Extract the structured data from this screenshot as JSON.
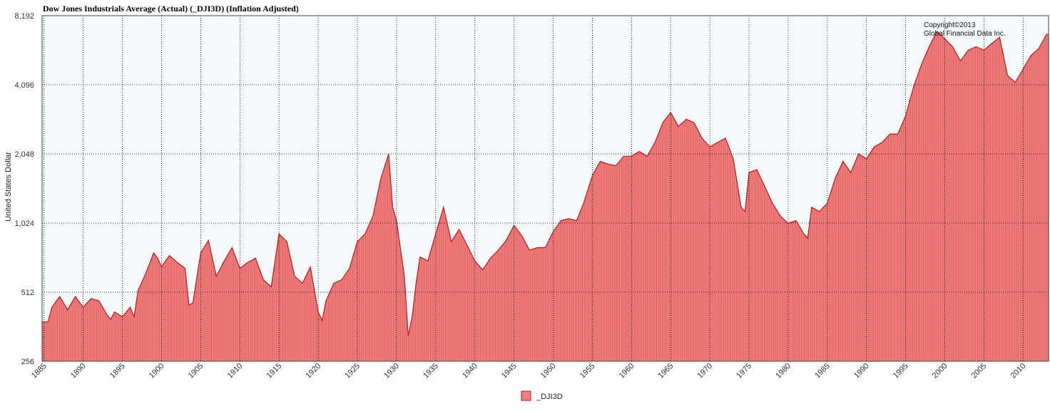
{
  "chart_data": {
    "type": "area",
    "title": "Dow Jones Industrials Average (Actual) (_DJI3D) (Inflation Adjusted)",
    "ylabel": "United States Dollar",
    "xlabel": "",
    "y_scale": "log2",
    "ylim": [
      256,
      8192
    ],
    "y_ticks": [
      256,
      512,
      1024,
      2048,
      4096,
      8192
    ],
    "y_tick_labels": [
      "256",
      "512",
      "1,024",
      "2,048",
      "4,096",
      "8,192"
    ],
    "xlim": [
      1884.75,
      2013.25
    ],
    "x_ticks": [
      1885,
      1890,
      1895,
      1900,
      1905,
      1910,
      1915,
      1920,
      1925,
      1930,
      1935,
      1940,
      1945,
      1950,
      1955,
      1960,
      1965,
      1970,
      1975,
      1980,
      1985,
      1990,
      1995,
      2000,
      2005,
      2010
    ],
    "x_tick_labels": [
      "1885",
      "1890",
      "1895",
      "1900",
      "1905",
      "1910",
      "1915",
      "1920",
      "1925",
      "1930",
      "1935",
      "1940",
      "1945",
      "1950",
      "1955",
      "1960",
      "1965",
      "1970",
      "1975",
      "1980",
      "1985",
      "1990",
      "1995",
      "2000",
      "2005",
      "2010"
    ],
    "grid": true,
    "legend_position": "bottom-center",
    "annotation_lines": [
      "Copyright©2013",
      "Global Financial Data Inc."
    ],
    "colors": {
      "fill": "#f08080",
      "line": "#b81c1c",
      "plot_bg": "#f5fafd",
      "grid": "#000000"
    },
    "series": [
      {
        "name": "_DJI3D",
        "x": [
          1885,
          1885.5,
          1886,
          1887,
          1888,
          1889,
          1890,
          1891,
          1892,
          1893,
          1893.5,
          1894,
          1895,
          1896,
          1896.5,
          1897,
          1898,
          1899,
          1899.5,
          1900,
          1901,
          1902,
          1903,
          1903.5,
          1904,
          1905,
          1906,
          1907,
          1908,
          1909,
          1910,
          1911,
          1912,
          1913,
          1914,
          1915,
          1916,
          1917,
          1918,
          1919,
          1920,
          1920.5,
          1921,
          1922,
          1923,
          1924,
          1925,
          1926,
          1927,
          1928,
          1929,
          1929.5,
          1930,
          1931,
          1931.5,
          1932,
          1932.5,
          1933,
          1934,
          1935,
          1936,
          1937,
          1938,
          1939,
          1940,
          1941,
          1942,
          1943,
          1944,
          1945,
          1946,
          1947,
          1948,
          1949,
          1950,
          1951,
          1952,
          1953,
          1954,
          1955,
          1956,
          1957,
          1958,
          1959,
          1960,
          1961,
          1962,
          1963,
          1964,
          1965,
          1966,
          1967,
          1968,
          1969,
          1970,
          1971,
          1972,
          1973,
          1974,
          1974.5,
          1975,
          1976,
          1977,
          1978,
          1979,
          1980,
          1981,
          1982,
          1982.5,
          1983,
          1984,
          1985,
          1986,
          1987,
          1988,
          1989,
          1990,
          1991,
          1992,
          1993,
          1994,
          1995,
          1996,
          1997,
          1998,
          1999,
          2000,
          2001,
          2002,
          2003,
          2004,
          2005,
          2006,
          2007,
          2008,
          2009,
          2010,
          2011,
          2012,
          2013
        ],
        "values": [
          380,
          380,
          440,
          490,
          430,
          490,
          440,
          480,
          470,
          410,
          390,
          420,
          400,
          440,
          400,
          520,
          620,
          760,
          720,
          660,
          740,
          690,
          650,
          450,
          460,
          760,
          860,
          600,
          700,
          800,
          650,
          690,
          720,
          580,
          540,
          920,
          850,
          600,
          560,
          660,
          420,
          385,
          470,
          560,
          580,
          650,
          850,
          920,
          1100,
          1600,
          2050,
          1200,
          1050,
          600,
          330,
          400,
          560,
          730,
          700,
          920,
          1200,
          850,
          960,
          820,
          700,
          640,
          720,
          780,
          860,
          1000,
          900,
          780,
          800,
          800,
          940,
          1050,
          1070,
          1050,
          1280,
          1650,
          1900,
          1850,
          1820,
          2000,
          2000,
          2100,
          2000,
          2300,
          2800,
          3100,
          2700,
          2900,
          2800,
          2400,
          2200,
          2300,
          2400,
          1950,
          1200,
          1150,
          1700,
          1750,
          1480,
          1250,
          1100,
          1020,
          1050,
          920,
          880,
          1200,
          1150,
          1250,
          1600,
          1900,
          1700,
          2050,
          1950,
          2200,
          2300,
          2500,
          2500,
          3000,
          4000,
          5000,
          6000,
          7000,
          6500,
          6000,
          5200,
          5800,
          6000,
          5800,
          6200,
          6600,
          4500,
          4200,
          4800,
          5500,
          5900,
          6800
        ]
      }
    ]
  },
  "legend": {
    "label": "_DJI3D"
  }
}
